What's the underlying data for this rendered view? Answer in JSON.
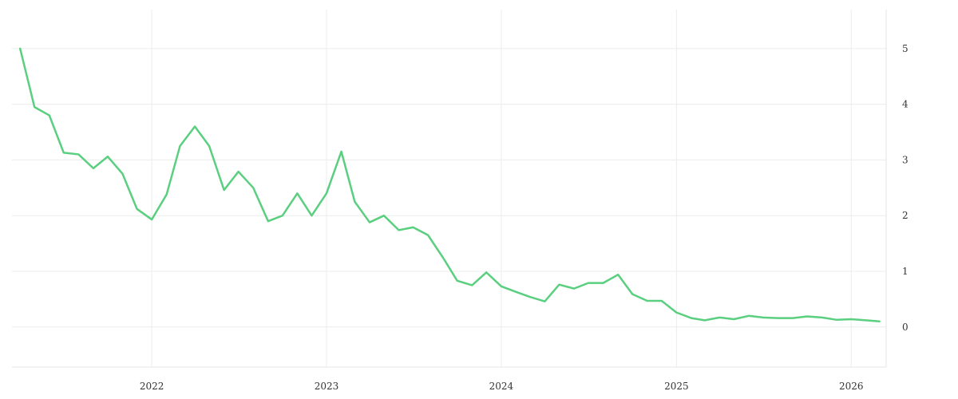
{
  "chart_data": {
    "type": "line",
    "title": "",
    "xlabel": "",
    "ylabel": "",
    "grid": true,
    "legend": "none",
    "y_axis_position": "right",
    "x_ticks": [
      "2022",
      "2023",
      "2024",
      "2025",
      "2026"
    ],
    "y_ticks": [
      0,
      1,
      2,
      3,
      4,
      5
    ],
    "ylim": [
      -0.72,
      5.7
    ],
    "xlim": [
      "2021-03-15",
      "2026-03-15"
    ],
    "series": [
      {
        "color": "#5acf7f",
        "points": [
          [
            "2021-04-01",
            5.0
          ],
          [
            "2021-05-01",
            3.95
          ],
          [
            "2021-06-01",
            3.8
          ],
          [
            "2021-07-01",
            3.13
          ],
          [
            "2021-08-01",
            3.1
          ],
          [
            "2021-09-01",
            2.85
          ],
          [
            "2021-10-01",
            3.06
          ],
          [
            "2021-11-01",
            2.75
          ],
          [
            "2021-12-01",
            2.12
          ],
          [
            "2022-01-01",
            1.93
          ],
          [
            "2022-02-01",
            2.38
          ],
          [
            "2022-03-01",
            3.25
          ],
          [
            "2022-04-01",
            3.6
          ],
          [
            "2022-05-01",
            3.25
          ],
          [
            "2022-06-01",
            2.46
          ],
          [
            "2022-07-01",
            2.79
          ],
          [
            "2022-08-01",
            2.5
          ],
          [
            "2022-09-01",
            1.9
          ],
          [
            "2022-10-01",
            2.0
          ],
          [
            "2022-11-01",
            2.4
          ],
          [
            "2022-12-01",
            2.0
          ],
          [
            "2023-01-01",
            2.4
          ],
          [
            "2023-02-01",
            3.15
          ],
          [
            "2023-03-01",
            2.25
          ],
          [
            "2023-04-01",
            1.88
          ],
          [
            "2023-05-01",
            2.0
          ],
          [
            "2023-06-01",
            1.74
          ],
          [
            "2023-07-01",
            1.79
          ],
          [
            "2023-08-01",
            1.65
          ],
          [
            "2023-09-01",
            1.25
          ],
          [
            "2023-10-01",
            0.83
          ],
          [
            "2023-11-01",
            0.75
          ],
          [
            "2023-12-01",
            0.98
          ],
          [
            "2024-01-01",
            0.73
          ],
          [
            "2024-02-01",
            0.63
          ],
          [
            "2024-03-01",
            0.54
          ],
          [
            "2024-04-01",
            0.46
          ],
          [
            "2024-05-01",
            0.76
          ],
          [
            "2024-06-01",
            0.69
          ],
          [
            "2024-07-01",
            0.79
          ],
          [
            "2024-08-01",
            0.79
          ],
          [
            "2024-09-01",
            0.94
          ],
          [
            "2024-10-01",
            0.59
          ],
          [
            "2024-11-01",
            0.47
          ],
          [
            "2024-12-01",
            0.47
          ],
          [
            "2025-01-01",
            0.26
          ],
          [
            "2025-02-01",
            0.16
          ],
          [
            "2025-03-01",
            0.12
          ],
          [
            "2025-04-01",
            0.17
          ],
          [
            "2025-05-01",
            0.14
          ],
          [
            "2025-06-01",
            0.2
          ],
          [
            "2025-07-01",
            0.17
          ],
          [
            "2025-08-01",
            0.16
          ],
          [
            "2025-09-01",
            0.16
          ],
          [
            "2025-10-01",
            0.19
          ],
          [
            "2025-11-01",
            0.17
          ],
          [
            "2025-12-01",
            0.13
          ],
          [
            "2026-01-01",
            0.14
          ],
          [
            "2026-02-01",
            0.12
          ],
          [
            "2026-03-01",
            0.1
          ]
        ]
      }
    ]
  }
}
